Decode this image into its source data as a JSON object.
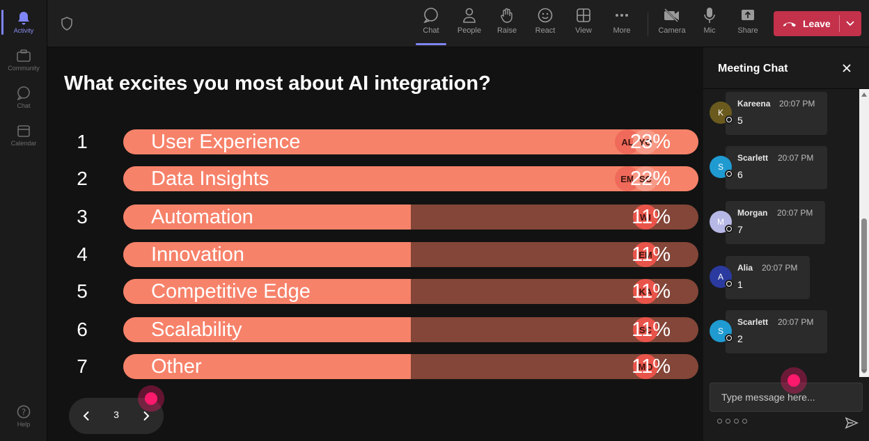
{
  "rail": {
    "items": [
      {
        "label": "Activity"
      },
      {
        "label": "Community"
      },
      {
        "label": "Chat"
      },
      {
        "label": "Calendar"
      }
    ],
    "help_label": "Help"
  },
  "toolbar": {
    "chat": "Chat",
    "people": "People",
    "raise": "Raise",
    "react": "React",
    "view": "View",
    "more": "More",
    "camera": "Camera",
    "mic": "Mic",
    "share": "Share",
    "leave": "Leave"
  },
  "poll": {
    "question": "What excites you most about AI integration?",
    "options": [
      {
        "rank": "1",
        "label": "User Experience",
        "pct": "23%",
        "fraction": 0.23,
        "avatars": [
          "AL",
          "YO"
        ]
      },
      {
        "rank": "2",
        "label": "Data Insights",
        "pct": "22%",
        "fraction": 0.22,
        "avatars": [
          "EM",
          "SC"
        ]
      },
      {
        "rank": "3",
        "label": "Automation",
        "pct": "11%",
        "fraction": 0.11,
        "avatars": [
          "WI"
        ]
      },
      {
        "rank": "4",
        "label": "Innovation",
        "pct": "11%",
        "fraction": 0.11,
        "avatars": [
          "EM"
        ]
      },
      {
        "rank": "5",
        "label": "Competitive Edge",
        "pct": "11%",
        "fraction": 0.11,
        "avatars": [
          "KA"
        ]
      },
      {
        "rank": "6",
        "label": "Scalability",
        "pct": "11%",
        "fraction": 0.11,
        "avatars": [
          "SC"
        ]
      },
      {
        "rank": "7",
        "label": "Other",
        "pct": "11%",
        "fraction": 0.11,
        "avatars": [
          "MO"
        ]
      }
    ],
    "page": "3"
  },
  "chat": {
    "title": "Meeting Chat",
    "messages": [
      {
        "initial": "K",
        "name": "Kareena",
        "time": "20:07 PM",
        "text": "5",
        "color": "#6b5a1e"
      },
      {
        "initial": "S",
        "name": "Scarlett",
        "time": "20:07 PM",
        "text": "6",
        "color": "#1f9bd1"
      },
      {
        "initial": "M",
        "name": "Morgan",
        "time": "20:07 PM",
        "text": "7",
        "color": "#b8b8e6"
      },
      {
        "initial": "A",
        "name": "Alia",
        "time": "20:07 PM",
        "text": "1",
        "color": "#2b3a9e"
      },
      {
        "initial": "S",
        "name": "Scarlett",
        "time": "20:07 PM",
        "text": "2",
        "color": "#1f9bd1"
      }
    ],
    "placeholder": "Type message here..."
  },
  "colors": {
    "accent": "#7f85f5",
    "bar_fill": "#f7826a",
    "bar_track": "#834638",
    "leave": "#c4314b"
  }
}
